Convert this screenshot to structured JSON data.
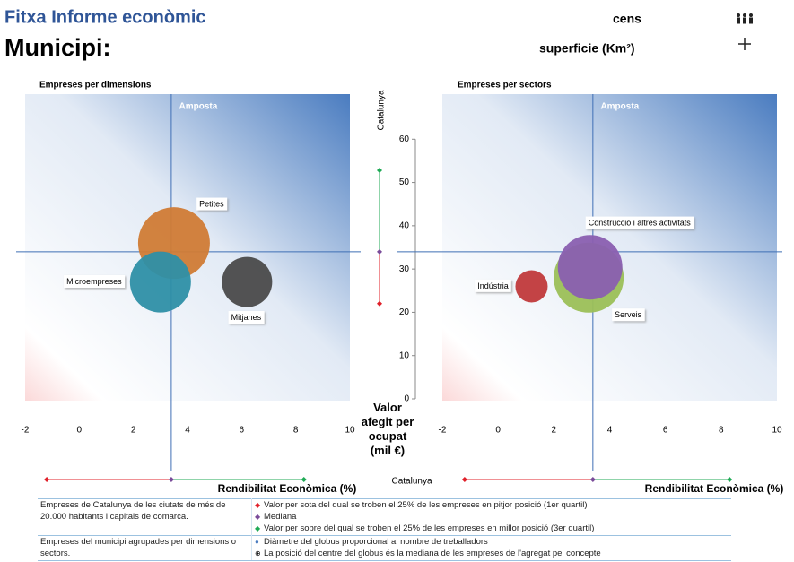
{
  "header": {
    "title": "Fitxa Informe econòmic",
    "subtitle": "Municipi:",
    "census_label": "cens",
    "area_label": "superficie (Km²)"
  },
  "benchmark": {
    "label": "Catalunya",
    "x_quartiles": [
      -1.2,
      3.4,
      8.3
    ],
    "y_quartiles": [
      22,
      34,
      52.8
    ],
    "colors": [
      "#e0202a",
      "#7a4c9a",
      "#1faa55"
    ]
  },
  "chart_data": [
    {
      "type": "bubble",
      "title": "Empreses per dimensions",
      "annotation": "Amposta",
      "x_label": "Rendibilitat Econòmica (%)",
      "categories": [
        "Petites",
        "Microempreses",
        "Mitjanes"
      ],
      "x": [
        3.5,
        3.0,
        6.2
      ],
      "y": [
        36,
        27,
        27
      ],
      "sizes": [
        40,
        34,
        28
      ],
      "colors": [
        "#d07b35",
        "#2e8fa6",
        "#4a4a4a"
      ],
      "xlim": [
        -2,
        10
      ],
      "xticks": [
        -2,
        0,
        2,
        4,
        6,
        8,
        10
      ],
      "ylim": [
        0,
        70
      ]
    },
    {
      "type": "bubble",
      "title": "Empreses per sectors",
      "annotation": "Amposta",
      "x_label": "Rendibilitat Econòmica (%)",
      "y_label": "Valor afegit per ocupat (mil €)",
      "categories": [
        "Indústria",
        "Construcció i altres activitats",
        "Serveis"
      ],
      "x": [
        1.2,
        3.3,
        3.25
      ],
      "y": [
        26,
        30.4,
        28
      ],
      "sizes": [
        18,
        36,
        39
      ],
      "colors": [
        "#c0393b",
        "#8a5fb0",
        "#9bbf57"
      ],
      "xlim": [
        -2,
        10
      ],
      "xticks": [
        -2,
        0,
        2,
        4,
        6,
        8,
        10
      ],
      "ylim": [
        0,
        70
      ],
      "yticks": [
        0,
        10,
        20,
        30,
        40,
        50,
        60
      ]
    }
  ],
  "legend_table": {
    "rows": [
      {
        "description": "Empreses de Catalunya de les ciutats de més de 20.000 habitants i capitals de comarca.",
        "items": [
          "Valor per sota del qual se troben el 25% de les empreses en pitjor posició (1er quartil)",
          "Mediana",
          "Valor per sobre del qual se troben el 25% de les empreses en millor posició (3er quartil)"
        ]
      },
      {
        "description": "Empreses del municipi agrupades per dimensions o sectors.",
        "items": [
          "Diàmetre del globus proporcional al nombre de treballadors",
          "La posició del centre del globus és la mediana de les empreses de l'agregat pel concepte"
        ]
      }
    ]
  }
}
